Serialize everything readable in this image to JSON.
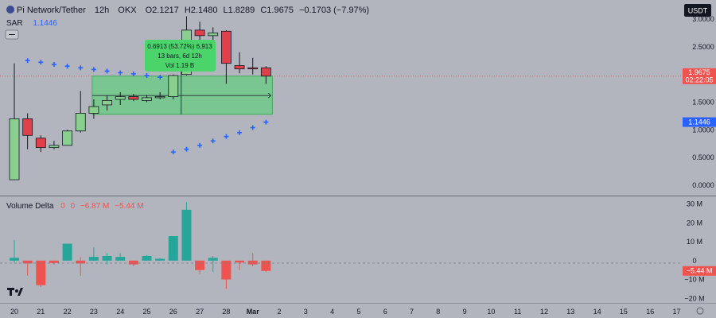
{
  "header": {
    "symbol": "Pi Network/Tether",
    "interval": "12h",
    "exchange": "OKX",
    "ohlc": {
      "open": "O2.1217",
      "high": "H2.1480",
      "low": "L1.8289",
      "close": "C1.9675",
      "change": "−0.1703 (−7.97%)"
    }
  },
  "indicator_sar": {
    "label": "SAR",
    "value": "1.1446"
  },
  "currency_button": "USDT",
  "volume_delta_header": {
    "label": "Volume Delta",
    "v1": "0",
    "v2": "0",
    "v3": "−6.87 M",
    "v4": "−5.44 M"
  },
  "measure_tooltip": {
    "line1": "0.6913 (53.72%) 6,913",
    "line2": "13 bars, 6d 12h",
    "line3": "Vol 1.19 B"
  },
  "price_badge": {
    "price": "1.9675",
    "countdown": "02:22:05"
  },
  "sar_badge": "1.1446",
  "delta_badge": "−5.44 M",
  "colors": {
    "up": "#26a69a",
    "down": "#ef5350",
    "up_candle": "#89d08f",
    "down_candle": "#e0404a",
    "sar": "#2962ff",
    "measure": "#4bd46a"
  },
  "chart_data": [
    {
      "type": "candlestick",
      "x_ticks": [
        "20",
        "21",
        "22",
        "23",
        "24",
        "25",
        "26",
        "27",
        "28",
        "Mar",
        "2",
        "3",
        "4",
        "5",
        "6",
        "7",
        "8",
        "9",
        "10",
        "11",
        "12",
        "13",
        "14",
        "15",
        "16",
        "17"
      ],
      "y_ticks": [
        "3.0000",
        "2.5000",
        "2.0000",
        "1.5000",
        "1.0000",
        "0.5000",
        "0.0000"
      ],
      "ylim": [
        -0.1,
        3.2
      ],
      "candles": [
        {
          "t": 0,
          "o": 0.1,
          "h": 2.2,
          "l": 0.1,
          "c": 1.2
        },
        {
          "t": 0.5,
          "o": 1.2,
          "h": 1.3,
          "l": 0.65,
          "c": 0.9
        },
        {
          "t": 1,
          "o": 0.85,
          "h": 0.9,
          "l": 0.6,
          "c": 0.68
        },
        {
          "t": 1.5,
          "o": 0.68,
          "h": 0.8,
          "l": 0.65,
          "c": 0.72
        },
        {
          "t": 2,
          "o": 0.72,
          "h": 1.0,
          "l": 0.72,
          "c": 0.98
        },
        {
          "t": 2.5,
          "o": 0.98,
          "h": 1.7,
          "l": 0.95,
          "c": 1.3
        },
        {
          "t": 3,
          "o": 1.3,
          "h": 1.55,
          "l": 1.2,
          "c": 1.42
        },
        {
          "t": 3.5,
          "o": 1.45,
          "h": 1.62,
          "l": 1.35,
          "c": 1.53
        },
        {
          "t": 4,
          "o": 1.55,
          "h": 1.68,
          "l": 1.45,
          "c": 1.6
        },
        {
          "t": 4.5,
          "o": 1.6,
          "h": 1.65,
          "l": 1.52,
          "c": 1.55
        },
        {
          "t": 5,
          "o": 1.53,
          "h": 1.63,
          "l": 1.5,
          "c": 1.58
        },
        {
          "t": 5.5,
          "o": 1.58,
          "h": 1.68,
          "l": 1.55,
          "c": 1.6
        },
        {
          "t": 6,
          "o": 1.6,
          "h": 2.0,
          "l": 1.55,
          "c": 1.98
        },
        {
          "t": 6.5,
          "o": 2.0,
          "h": 3.05,
          "l": 1.98,
          "c": 2.8
        },
        {
          "t": 7,
          "o": 2.8,
          "h": 2.95,
          "l": 2.6,
          "c": 2.7
        },
        {
          "t": 7.5,
          "o": 2.7,
          "h": 2.85,
          "l": 2.6,
          "c": 2.75
        },
        {
          "t": 8,
          "o": 2.78,
          "h": 2.8,
          "l": 1.83,
          "c": 2.2
        },
        {
          "t": 8.5,
          "o": 2.16,
          "h": 2.4,
          "l": 2.02,
          "c": 2.1
        },
        {
          "t": 9,
          "o": 2.12,
          "h": 2.3,
          "l": 2.0,
          "c": 2.1
        },
        {
          "t": 9.5,
          "o": 2.12,
          "h": 2.15,
          "l": 1.83,
          "c": 1.97
        }
      ],
      "sar": [
        {
          "t": 0.5,
          "v": 2.25
        },
        {
          "t": 1,
          "v": 2.22
        },
        {
          "t": 1.5,
          "v": 2.18
        },
        {
          "t": 2,
          "v": 2.15
        },
        {
          "t": 2.5,
          "v": 2.12
        },
        {
          "t": 3,
          "v": 2.09
        },
        {
          "t": 3.5,
          "v": 2.06
        },
        {
          "t": 4,
          "v": 2.03
        },
        {
          "t": 4.5,
          "v": 2.01
        },
        {
          "t": 5,
          "v": 1.98
        },
        {
          "t": 5.5,
          "v": 1.95
        },
        {
          "t": 6,
          "v": 0.6
        },
        {
          "t": 6.5,
          "v": 0.65
        },
        {
          "t": 7,
          "v": 0.72
        },
        {
          "t": 7.5,
          "v": 0.8
        },
        {
          "t": 8,
          "v": 0.88
        },
        {
          "t": 8.5,
          "v": 0.95
        },
        {
          "t": 9,
          "v": 1.04
        },
        {
          "t": 9.5,
          "v": 1.14
        }
      ],
      "current_price": 1.9675,
      "measure": {
        "t_start": 3,
        "t_end": 9.5,
        "low": 1.28,
        "high": 1.97,
        "mid": 1.62
      }
    },
    {
      "type": "bar",
      "title": "Volume Delta",
      "y_ticks": [
        "30 M",
        "20 M",
        "10 M",
        "0",
        "−10 M",
        "−20 M"
      ],
      "ylim": [
        -22,
        32
      ],
      "bars": [
        {
          "t": 0,
          "v": 1.5,
          "hi": 11,
          "lo": -1
        },
        {
          "t": 0.5,
          "v": -1.5,
          "hi": 0,
          "lo": -8
        },
        {
          "t": 1,
          "v": -13,
          "hi": 0,
          "lo": -14
        },
        {
          "t": 1.5,
          "v": -1.2,
          "hi": 0,
          "lo": -2
        },
        {
          "t": 2,
          "v": 9,
          "hi": 9,
          "lo": 0
        },
        {
          "t": 2.5,
          "v": -1.5,
          "hi": 2,
          "lo": -8
        },
        {
          "t": 3,
          "v": 2,
          "hi": 7,
          "lo": 0
        },
        {
          "t": 3.5,
          "v": 2.5,
          "hi": 4,
          "lo": -2
        },
        {
          "t": 4,
          "v": 2,
          "hi": 4,
          "lo": 0
        },
        {
          "t": 4.5,
          "v": -2,
          "hi": 0,
          "lo": -3
        },
        {
          "t": 5,
          "v": 2.5,
          "hi": 3,
          "lo": 0
        },
        {
          "t": 5.5,
          "v": 1,
          "hi": 1.5,
          "lo": 0
        },
        {
          "t": 6,
          "v": 13,
          "hi": 13,
          "lo": 0
        },
        {
          "t": 6.5,
          "v": 27,
          "hi": 31,
          "lo": 0
        },
        {
          "t": 7,
          "v": -5,
          "hi": 0,
          "lo": -7
        },
        {
          "t": 7.5,
          "v": 1.5,
          "hi": 2.5,
          "lo": -6
        },
        {
          "t": 8,
          "v": -10,
          "hi": 0,
          "lo": -15
        },
        {
          "t": 8.5,
          "v": -1,
          "hi": 0,
          "lo": -5
        },
        {
          "t": 9,
          "v": -2,
          "hi": 4,
          "lo": -3
        },
        {
          "t": 9.5,
          "v": -5.44,
          "hi": 0,
          "lo": -6
        }
      ]
    }
  ]
}
